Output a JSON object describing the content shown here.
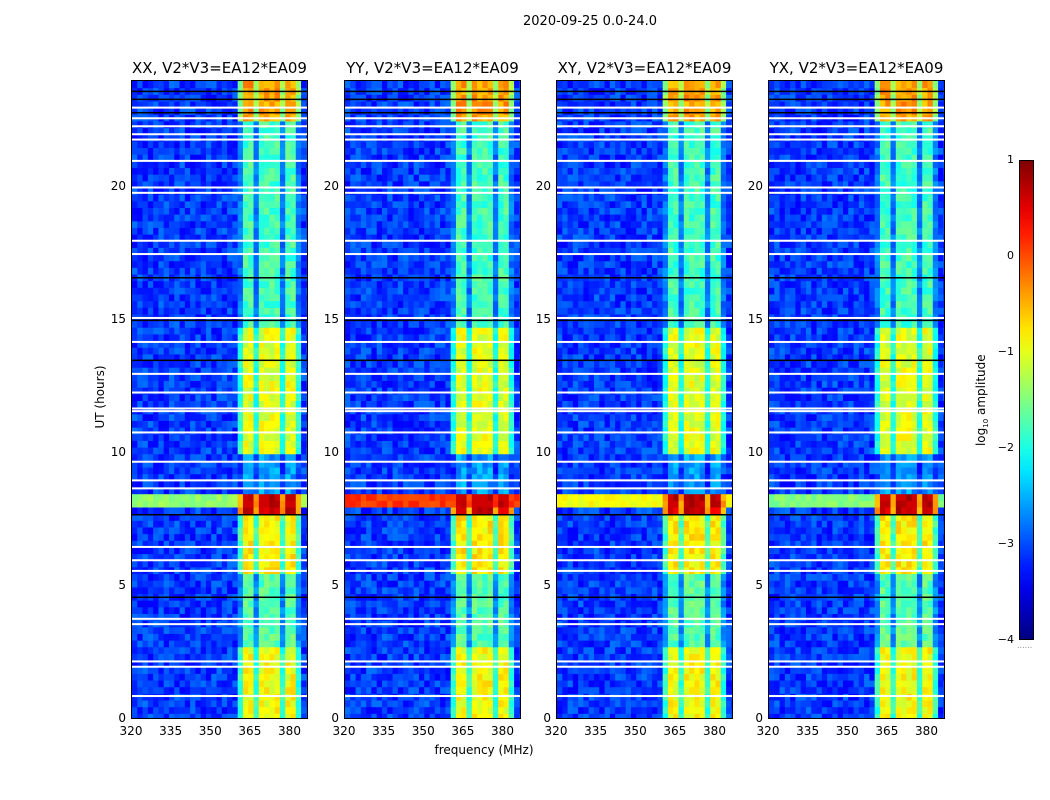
{
  "figure": {
    "title": "2020-09-25 0.0-24.0"
  },
  "chart_data": {
    "type": "heatmap",
    "xlabel": "frequency (MHz)",
    "ylabel": "UT (hours)",
    "xlim": [
      320,
      387
    ],
    "ylim": [
      0,
      24
    ],
    "xticks": [
      "320",
      "335",
      "350",
      "365",
      "380"
    ],
    "xtick_values": [
      320,
      335,
      350,
      365,
      380
    ],
    "yticks": [
      "0",
      "5",
      "10",
      "15",
      "20"
    ],
    "ytick_values": [
      0,
      5,
      10,
      15,
      20
    ],
    "colorbar": {
      "label_main": "log",
      "label_sub": "10",
      "label_rest": " amplitude",
      "range": [
        -4,
        1
      ],
      "ticks": [
        "1",
        "0",
        "−1",
        "−2",
        "−3",
        "−4"
      ],
      "tick_values": [
        1,
        0,
        -1,
        -2,
        -3,
        -4
      ],
      "colormap": "jet",
      "extra": "......"
    },
    "model": {
      "background_level": -3.1,
      "rfi_channels_mhz": [
        [
          362.5,
          366.5
        ],
        [
          367.5,
          371.5
        ],
        [
          372.5,
          376.5
        ],
        [
          377.5,
          382
        ]
      ],
      "rfi_segments": [
        {
          "t": [
            0,
            2.7
          ],
          "level": -0.9
        },
        {
          "t": [
            2.7,
            5.5
          ],
          "level": -1.7
        },
        {
          "t": [
            5.5,
            7.7
          ],
          "level": -0.8
        },
        {
          "t": [
            7.7,
            8.5
          ],
          "level": 0.6
        },
        {
          "t": [
            8.5,
            10.0
          ],
          "level": -2.6
        },
        {
          "t": [
            10.0,
            14.8
          ],
          "level": -1.0
        },
        {
          "t": [
            14.8,
            22.5
          ],
          "level": -1.8
        },
        {
          "t": [
            22.5,
            24.0
          ],
          "level": -0.4
        }
      ],
      "flagged_times": [
        0.9,
        2.0,
        2.2,
        3.6,
        3.8,
        5.6,
        6.0,
        6.5,
        8.7,
        9.0,
        9.7,
        10.8,
        11.6,
        11.7,
        12.3,
        13.0,
        14.2,
        15.1,
        17.5,
        18.0,
        19.8,
        20.0,
        21.0,
        21.8,
        22.0,
        22.3,
        22.6,
        23.0
      ],
      "dropout_times": [
        4.6,
        7.7,
        13.5,
        15.0,
        16.6,
        22.8,
        23.3,
        23.6
      ]
    },
    "panels": [
      {
        "title": "XX, V2*V3=EA12*EA09",
        "broadband_event": {
          "t": [
            8.1,
            8.45
          ],
          "level": -1.4
        }
      },
      {
        "title": "YY, V2*V3=EA12*EA09",
        "broadband_event": {
          "t": [
            7.95,
            8.45
          ],
          "level": 0.1
        }
      },
      {
        "title": "XY, V2*V3=EA12*EA09",
        "broadband_event": {
          "t": [
            8.1,
            8.45
          ],
          "level": -0.9
        }
      },
      {
        "title": "YX, V2*V3=EA12*EA09",
        "broadband_event": {
          "t": [
            8.1,
            8.45
          ],
          "level": -1.5
        }
      }
    ]
  }
}
